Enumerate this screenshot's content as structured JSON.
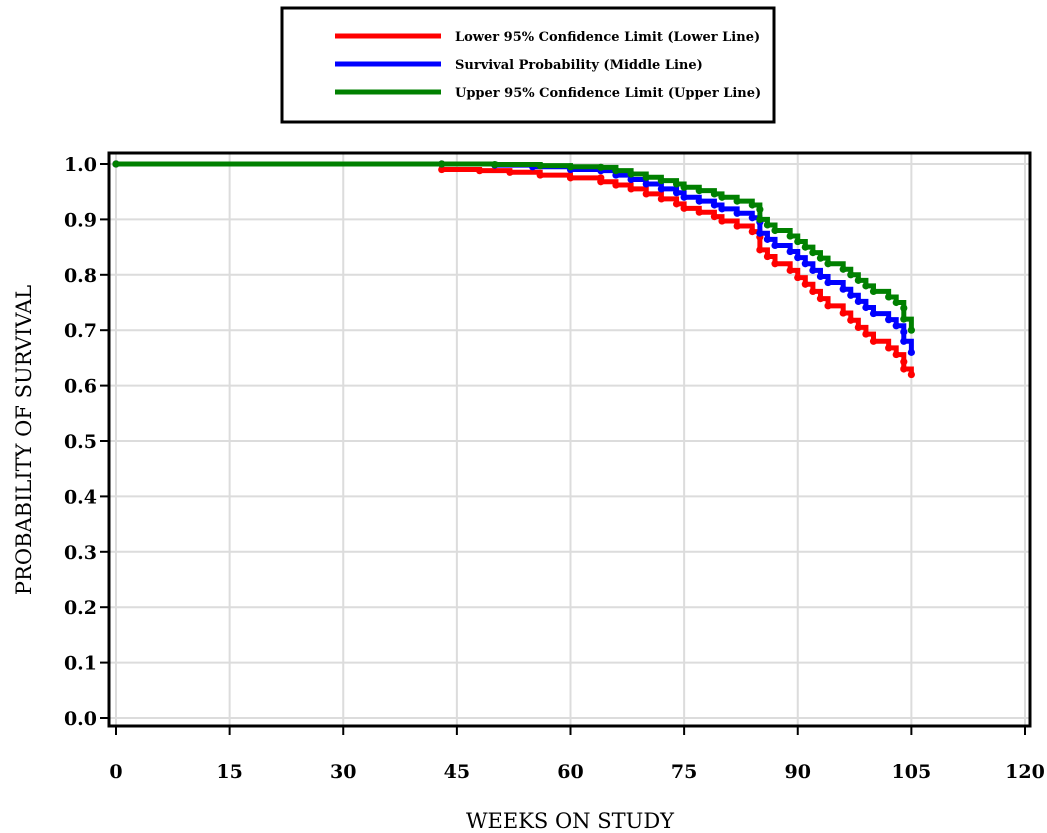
{
  "chart_data": {
    "type": "line",
    "xlabel": "WEEKS ON STUDY",
    "ylabel": "PROBABILITY OF SURVIVAL",
    "xlim": [
      0,
      120
    ],
    "ylim": [
      0,
      1
    ],
    "xticks": [
      0,
      15,
      30,
      45,
      60,
      75,
      90,
      105,
      120
    ],
    "yticks": [
      "0.0",
      "0.1",
      "0.2",
      "0.3",
      "0.4",
      "0.5",
      "0.6",
      "0.7",
      "0.8",
      "0.9",
      "1.0"
    ],
    "grid": true,
    "legend_position": "top-center",
    "series": [
      {
        "name": "Lower 95% Confidence Limit (Lower Line)",
        "color": "#ff0000",
        "points": [
          [
            0,
            1.0
          ],
          [
            43,
            1.0
          ],
          [
            43,
            0.99
          ],
          [
            48,
            0.988
          ],
          [
            52,
            0.985
          ],
          [
            56,
            0.98
          ],
          [
            60,
            0.975
          ],
          [
            64,
            0.975
          ],
          [
            64,
            0.968
          ],
          [
            66,
            0.962
          ],
          [
            68,
            0.955
          ],
          [
            70,
            0.946
          ],
          [
            72,
            0.937
          ],
          [
            74,
            0.928
          ],
          [
            75,
            0.92
          ],
          [
            77,
            0.913
          ],
          [
            79,
            0.905
          ],
          [
            80,
            0.897
          ],
          [
            82,
            0.888
          ],
          [
            84,
            0.878
          ],
          [
            85,
            0.868
          ],
          [
            85,
            0.845
          ],
          [
            86,
            0.833
          ],
          [
            87,
            0.82
          ],
          [
            89,
            0.808
          ],
          [
            90,
            0.795
          ],
          [
            91,
            0.783
          ],
          [
            92,
            0.77
          ],
          [
            93,
            0.757
          ],
          [
            94,
            0.744
          ],
          [
            96,
            0.731
          ],
          [
            97,
            0.718
          ],
          [
            98,
            0.705
          ],
          [
            99,
            0.693
          ],
          [
            100,
            0.68
          ],
          [
            102,
            0.668
          ],
          [
            103,
            0.656
          ],
          [
            104,
            0.643
          ],
          [
            104,
            0.63
          ],
          [
            105,
            0.62
          ]
        ]
      },
      {
        "name": "Survival Probability (Middle Line)",
        "color": "#0000ff",
        "points": [
          [
            0,
            1.0
          ],
          [
            43,
            1.0
          ],
          [
            50,
            0.998
          ],
          [
            55,
            0.995
          ],
          [
            60,
            0.99
          ],
          [
            64,
            0.988
          ],
          [
            66,
            0.98
          ],
          [
            68,
            0.972
          ],
          [
            70,
            0.964
          ],
          [
            72,
            0.955
          ],
          [
            74,
            0.948
          ],
          [
            75,
            0.94
          ],
          [
            77,
            0.933
          ],
          [
            79,
            0.926
          ],
          [
            80,
            0.919
          ],
          [
            82,
            0.911
          ],
          [
            84,
            0.903
          ],
          [
            85,
            0.895
          ],
          [
            85,
            0.875
          ],
          [
            86,
            0.864
          ],
          [
            87,
            0.853
          ],
          [
            89,
            0.842
          ],
          [
            90,
            0.831
          ],
          [
            91,
            0.82
          ],
          [
            92,
            0.808
          ],
          [
            93,
            0.797
          ],
          [
            94,
            0.786
          ],
          [
            96,
            0.774
          ],
          [
            97,
            0.763
          ],
          [
            98,
            0.752
          ],
          [
            99,
            0.741
          ],
          [
            100,
            0.73
          ],
          [
            102,
            0.719
          ],
          [
            103,
            0.708
          ],
          [
            104,
            0.697
          ],
          [
            104,
            0.68
          ],
          [
            105,
            0.66
          ]
        ]
      },
      {
        "name": "Upper 95% Confidence Limit (Upper Line)",
        "color": "#008000",
        "points": [
          [
            0,
            1.0
          ],
          [
            43,
            1.0
          ],
          [
            50,
            0.999
          ],
          [
            56,
            0.997
          ],
          [
            60,
            0.995
          ],
          [
            64,
            0.994
          ],
          [
            66,
            0.988
          ],
          [
            68,
            0.982
          ],
          [
            70,
            0.976
          ],
          [
            72,
            0.97
          ],
          [
            74,
            0.964
          ],
          [
            75,
            0.958
          ],
          [
            77,
            0.952
          ],
          [
            79,
            0.946
          ],
          [
            80,
            0.94
          ],
          [
            82,
            0.933
          ],
          [
            84,
            0.926
          ],
          [
            85,
            0.918
          ],
          [
            85,
            0.9
          ],
          [
            86,
            0.89
          ],
          [
            87,
            0.88
          ],
          [
            89,
            0.87
          ],
          [
            90,
            0.86
          ],
          [
            91,
            0.85
          ],
          [
            92,
            0.84
          ],
          [
            93,
            0.83
          ],
          [
            94,
            0.82
          ],
          [
            96,
            0.81
          ],
          [
            97,
            0.8
          ],
          [
            98,
            0.79
          ],
          [
            99,
            0.78
          ],
          [
            100,
            0.77
          ],
          [
            102,
            0.76
          ],
          [
            103,
            0.75
          ],
          [
            104,
            0.74
          ],
          [
            104,
            0.72
          ],
          [
            105,
            0.7
          ]
        ]
      }
    ]
  }
}
